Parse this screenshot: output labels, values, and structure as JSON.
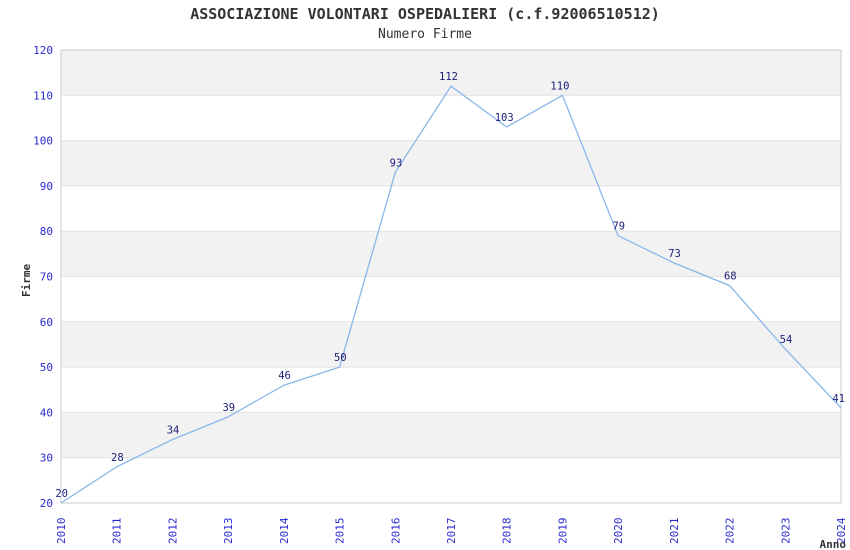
{
  "chart_data": {
    "type": "line",
    "title": "ASSOCIAZIONE VOLONTARI OSPEDALIERI (c.f.92006510512)",
    "subtitle": "Numero Firme",
    "xlabel": "Anno",
    "ylabel": "Firme",
    "categories": [
      "2010",
      "2011",
      "2012",
      "2013",
      "2014",
      "2015",
      "2016",
      "2017",
      "2018",
      "2019",
      "2020",
      "2021",
      "2022",
      "2023",
      "2024"
    ],
    "values": [
      20,
      28,
      34,
      39,
      46,
      50,
      93,
      112,
      103,
      110,
      79,
      73,
      68,
      54,
      41
    ],
    "ylim": [
      20,
      120
    ],
    "ytick_step": 10,
    "grid": true,
    "legend": "none",
    "banded_background": true,
    "colors": {
      "line": "#89b7ea",
      "point_label": "#1c1c78",
      "tick_label": "#2a2ad2",
      "axis_title": "#333333",
      "title": "#333333",
      "band_gray": "#f2f2f2",
      "band_white": "#ffffff",
      "grid_line": "#e2e2e2",
      "plot_border": "#cccccc",
      "background": "#ffffff"
    }
  }
}
